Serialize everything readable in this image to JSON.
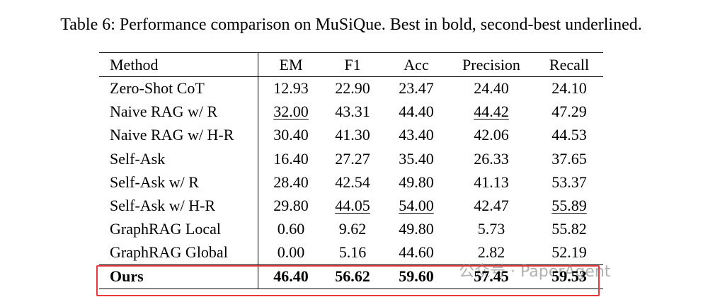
{
  "caption": "Table 6: Performance comparison on MuSiQue. Best in bold, second-best underlined.",
  "table": {
    "header": [
      "Method",
      "EM",
      "F1",
      "Acc",
      "Precision",
      "Recall"
    ],
    "rows": [
      [
        "Zero-Shot CoT",
        "12.93",
        "22.90",
        "23.47",
        "24.40",
        "24.10"
      ],
      [
        "Naive RAG w/ R",
        {
          "text": "32.00",
          "style": "underline"
        },
        "43.31",
        "44.40",
        {
          "text": "44.42",
          "style": "underline"
        },
        "47.29"
      ],
      [
        "Naive RAG w/ H-R",
        "30.40",
        "41.30",
        "43.40",
        "42.06",
        "44.53"
      ],
      [
        "Self-Ask",
        "16.40",
        "27.27",
        "35.40",
        "26.33",
        "37.65"
      ],
      [
        "Self-Ask w/ R",
        "28.40",
        "42.54",
        "49.80",
        "41.13",
        "53.37"
      ],
      [
        "Self-Ask w/ H-R",
        "29.80",
        {
          "text": "44.05",
          "style": "underline"
        },
        {
          "text": "54.00",
          "style": "underline"
        },
        "42.47",
        {
          "text": "55.89",
          "style": "underline"
        }
      ],
      [
        "GraphRAG Local",
        "0.60",
        "9.62",
        "49.80",
        "5.73",
        "55.82"
      ],
      [
        "GraphRAG Global",
        "0.00",
        "5.16",
        "44.60",
        "2.82",
        "52.19"
      ],
      [
        {
          "text": "Ours",
          "style": "bold"
        },
        {
          "text": "46.40",
          "style": "bold"
        },
        {
          "text": "56.62",
          "style": "bold"
        },
        {
          "text": "59.60",
          "style": "bold"
        },
        {
          "text": "57.45",
          "style": "bold"
        },
        {
          "text": "59.53",
          "style": "bold"
        }
      ]
    ]
  },
  "watermark": "公众号 · PaperAgent"
}
